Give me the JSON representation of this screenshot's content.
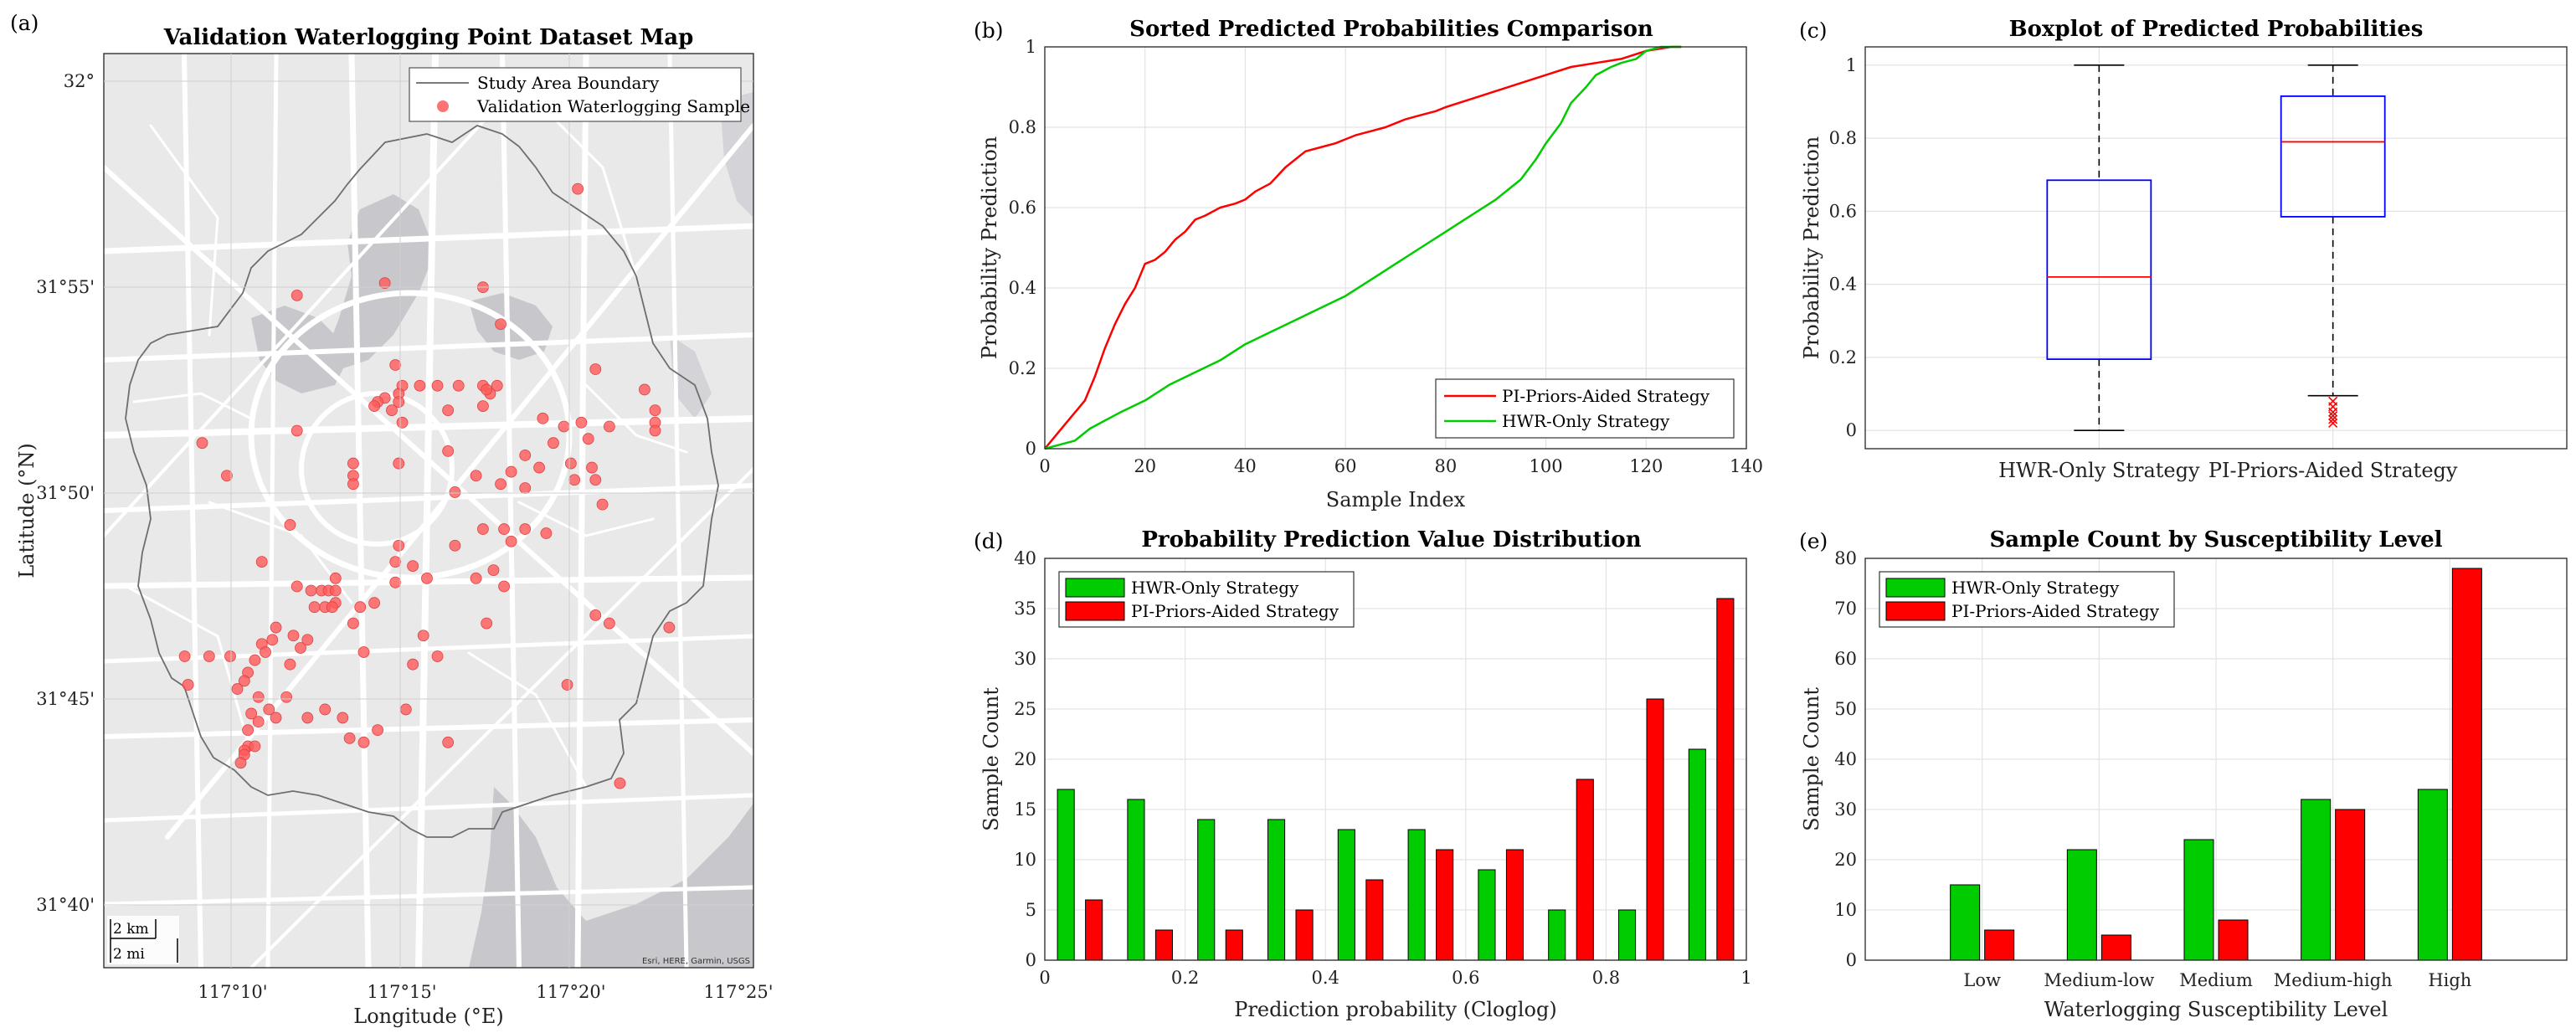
{
  "colors": {
    "red": "#ff0000",
    "green": "#00cc00",
    "box_blue": "#0000ff",
    "map_bg": "#e9e9e9",
    "water": "#c8c8cc",
    "road": "#ffffff",
    "sample_point": "#ff5a5a"
  },
  "panels": {
    "a": {
      "label": "(a)",
      "title": "Validation Waterlogging Point Dataset Map",
      "xlabel": "Longitude (°E)",
      "ylabel": "Latitude (°N)",
      "xticks": [
        "117°10'",
        "117°15'",
        "117°20'",
        "117°25'"
      ],
      "yticks": [
        "32°",
        "31°55'",
        "31°50'",
        "31°45'",
        "31°40'"
      ],
      "legend": [
        "Study Area Boundary",
        "Validation Waterlogging Sample"
      ],
      "scale_km": "2 km",
      "scale_mi": "2 mi",
      "attribution": "Esri, HERE, Garmin, USGS"
    },
    "b": {
      "label": "(b)"
    },
    "c": {
      "label": "(c)"
    },
    "d": {
      "label": "(d)"
    },
    "e": {
      "label": "(e)"
    }
  },
  "chart_data": [
    {
      "type": "scatter",
      "id": "a",
      "title": "Validation Waterlogging Point Dataset Map",
      "xlabel": "Longitude (°E)",
      "ylabel": "Latitude (°N)",
      "xlim": [
        117.1083,
        117.4167
      ],
      "ylim": [
        31.6417,
        32.0133
      ],
      "series": [
        {
          "name": "Validation Waterlogging Sample",
          "points": [
            [
              117.3333,
              31.9583
            ],
            [
              117.2417,
              31.92
            ],
            [
              117.2883,
              31.9183
            ],
            [
              117.2,
              31.915
            ],
            [
              117.2967,
              31.9033
            ],
            [
              117.3417,
              31.885
            ],
            [
              117.2467,
              31.8867
            ],
            [
              117.25,
              31.8783
            ],
            [
              117.2483,
              31.875
            ],
            [
              117.2483,
              31.8717
            ],
            [
              117.2417,
              31.8733
            ],
            [
              117.2383,
              31.8717
            ],
            [
              117.2367,
              31.87
            ],
            [
              117.245,
              31.8683
            ],
            [
              117.25,
              31.8633
            ],
            [
              117.2583,
              31.8783
            ],
            [
              117.2667,
              31.8783
            ],
            [
              117.2767,
              31.8783
            ],
            [
              117.2883,
              31.8783
            ],
            [
              117.2917,
              31.875
            ],
            [
              117.29,
              31.8767
            ],
            [
              117.295,
              31.8783
            ],
            [
              117.2883,
              31.87
            ],
            [
              117.2717,
              31.8683
            ],
            [
              117.3167,
              31.865
            ],
            [
              117.3267,
              31.8617
            ],
            [
              117.335,
              31.8633
            ],
            [
              117.3483,
              31.8617
            ],
            [
              117.365,
              31.8767
            ],
            [
              117.37,
              31.8683
            ],
            [
              117.37,
              31.8633
            ],
            [
              117.37,
              31.86
            ],
            [
              117.155,
              31.855
            ],
            [
              117.2,
              31.86
            ],
            [
              117.2483,
              31.8467
            ],
            [
              117.2717,
              31.8517
            ],
            [
              117.3083,
              31.85
            ],
            [
              117.3217,
              31.855
            ],
            [
              117.3383,
              31.8567
            ],
            [
              117.315,
              31.845
            ],
            [
              117.33,
              31.8467
            ],
            [
              117.34,
              31.845
            ],
            [
              117.3417,
              31.84
            ],
            [
              117.3317,
              31.84
            ],
            [
              117.3017,
              31.8433
            ],
            [
              117.2967,
              31.8383
            ],
            [
              117.285,
              31.8417
            ],
            [
              117.275,
              31.835
            ],
            [
              117.3083,
              31.8367
            ],
            [
              117.345,
              31.83
            ],
            [
              117.2267,
              31.8467
            ],
            [
              117.2267,
              31.8417
            ],
            [
              117.2267,
              31.8383
            ],
            [
              117.1667,
              31.8417
            ],
            [
              117.2183,
              31.8
            ],
            [
              117.2483,
              31.8133
            ],
            [
              117.255,
              31.805
            ],
            [
              117.2617,
              31.8
            ],
            [
              117.275,
              31.8133
            ],
            [
              117.2883,
              31.82
            ],
            [
              117.2983,
              31.82
            ],
            [
              117.3083,
              31.82
            ],
            [
              117.3183,
              31.8183
            ],
            [
              117.3017,
              31.815
            ],
            [
              117.2933,
              31.8033
            ],
            [
              117.285,
              31.8
            ],
            [
              117.2983,
              31.7967
            ],
            [
              117.2467,
              31.8067
            ],
            [
              117.2467,
              31.7983
            ],
            [
              117.1967,
              31.8217
            ],
            [
              117.1833,
              31.8067
            ],
            [
              117.2,
              31.7967
            ],
            [
              117.2067,
              31.795
            ],
            [
              117.2117,
              31.795
            ],
            [
              117.215,
              31.795
            ],
            [
              117.2183,
              31.795
            ],
            [
              117.2183,
              31.79
            ],
            [
              117.2083,
              31.7883
            ],
            [
              117.2133,
              31.7883
            ],
            [
              117.2167,
              31.7883
            ],
            [
              117.23,
              31.7883
            ],
            [
              117.2367,
              31.79
            ],
            [
              117.2267,
              31.7817
            ],
            [
              117.3417,
              31.785
            ],
            [
              117.3483,
              31.7817
            ],
            [
              117.3767,
              31.78
            ],
            [
              117.29,
              31.7817
            ],
            [
              117.26,
              31.7767
            ],
            [
              117.2667,
              31.7683
            ],
            [
              117.255,
              31.765
            ],
            [
              117.2317,
              31.77
            ],
            [
              117.19,
              31.78
            ],
            [
              117.1983,
              31.7767
            ],
            [
              117.205,
              31.775
            ],
            [
              117.1883,
              31.775
            ],
            [
              117.1833,
              31.7733
            ],
            [
              117.185,
              31.77
            ],
            [
              117.1967,
              31.765
            ],
            [
              117.2017,
              31.7717
            ],
            [
              117.18,
              31.7667
            ],
            [
              117.1683,
              31.7683
            ],
            [
              117.1583,
              31.7683
            ],
            [
              117.1467,
              31.7683
            ],
            [
              117.1767,
              31.7617
            ],
            [
              117.175,
              31.7583
            ],
            [
              117.1717,
              31.755
            ],
            [
              117.1817,
              31.7517
            ],
            [
              117.195,
              31.7517
            ],
            [
              117.1867,
              31.7467
            ],
            [
              117.2133,
              31.7467
            ],
            [
              117.2217,
              31.7433
            ],
            [
              117.19,
              31.7433
            ],
            [
              117.1817,
              31.7417
            ],
            [
              117.1783,
              31.745
            ],
            [
              117.205,
              31.7433
            ],
            [
              117.225,
              31.735
            ],
            [
              117.2317,
              31.7333
            ],
            [
              117.2383,
              31.7383
            ],
            [
              117.2517,
              31.7467
            ],
            [
              117.2717,
              31.7333
            ],
            [
              117.1767,
              31.7383
            ],
            [
              117.1767,
              31.7317
            ],
            [
              117.175,
              31.73
            ],
            [
              117.3283,
              31.7567
            ],
            [
              117.3533,
              31.7167
            ],
            [
              117.18,
              31.7317
            ],
            [
              117.1483,
              31.7567
            ],
            [
              117.175,
              31.7283
            ],
            [
              117.1733,
              31.725
            ]
          ]
        }
      ]
    },
    {
      "type": "line",
      "id": "b",
      "title": "Sorted Predicted Probabilities Comparison",
      "xlabel": "Sample Index",
      "ylabel": "Probability Prediction",
      "xlim": [
        0,
        140
      ],
      "ylim": [
        0,
        1
      ],
      "xticks": [
        0,
        20,
        40,
        60,
        80,
        100,
        120,
        140
      ],
      "yticks": [
        0,
        0.2,
        0.4,
        0.6,
        0.8,
        1
      ],
      "legend_location": "bottom-right",
      "series": [
        {
          "name": "PI-Priors-Aided Strategy",
          "x": [
            0,
            2,
            4,
            6,
            8,
            10,
            12,
            14,
            16,
            18,
            20,
            22,
            24,
            26,
            28,
            30,
            32,
            35,
            38,
            40,
            42,
            45,
            48,
            50,
            52,
            55,
            58,
            60,
            62,
            65,
            68,
            70,
            72,
            75,
            78,
            80,
            85,
            90,
            95,
            100,
            105,
            110,
            115,
            120,
            125,
            127
          ],
          "values": [
            0.0,
            0.03,
            0.06,
            0.09,
            0.12,
            0.18,
            0.25,
            0.31,
            0.36,
            0.4,
            0.46,
            0.47,
            0.49,
            0.52,
            0.54,
            0.57,
            0.58,
            0.6,
            0.61,
            0.62,
            0.64,
            0.66,
            0.7,
            0.72,
            0.74,
            0.75,
            0.76,
            0.77,
            0.78,
            0.79,
            0.8,
            0.81,
            0.82,
            0.83,
            0.84,
            0.85,
            0.87,
            0.89,
            0.91,
            0.93,
            0.95,
            0.96,
            0.97,
            0.99,
            1.0,
            1.0
          ]
        },
        {
          "name": "HWR-Only Strategy",
          "x": [
            0,
            3,
            6,
            9,
            12,
            15,
            20,
            25,
            30,
            35,
            40,
            45,
            50,
            55,
            60,
            65,
            70,
            75,
            80,
            85,
            90,
            95,
            98,
            100,
            103,
            105,
            108,
            110,
            113,
            115,
            118,
            120,
            123,
            125,
            127
          ],
          "values": [
            0.0,
            0.01,
            0.02,
            0.05,
            0.07,
            0.09,
            0.12,
            0.16,
            0.19,
            0.22,
            0.26,
            0.29,
            0.32,
            0.35,
            0.38,
            0.42,
            0.46,
            0.5,
            0.54,
            0.58,
            0.62,
            0.67,
            0.72,
            0.76,
            0.81,
            0.86,
            0.9,
            0.93,
            0.95,
            0.96,
            0.97,
            0.99,
            1.0,
            1.0,
            1.0
          ]
        }
      ]
    },
    {
      "type": "box",
      "id": "c",
      "title": "Boxplot of Predicted Probabilities",
      "ylabel": "Probability Prediction",
      "ylim": [
        -0.05,
        1.05
      ],
      "yticks": [
        0,
        0.2,
        0.4,
        0.6,
        0.8,
        1
      ],
      "categories": [
        "HWR-Only Strategy",
        "PI-Priors-Aided Strategy"
      ],
      "boxes": [
        {
          "name": "HWR-Only Strategy",
          "whisker_low": 0.0,
          "q1": 0.195,
          "median": 0.42,
          "q3": 0.685,
          "whisker_high": 1.0,
          "outliers": []
        },
        {
          "name": "PI-Priors-Aided Strategy",
          "whisker_low": 0.095,
          "q1": 0.585,
          "median": 0.79,
          "q3": 0.915,
          "whisker_high": 1.0,
          "outliers": [
            0.08,
            0.065,
            0.05,
            0.04,
            0.03,
            0.02
          ]
        }
      ]
    },
    {
      "type": "bar",
      "id": "d",
      "title": "Probability Prediction Value Distribution",
      "xlabel": "Prediction probability (Cloglog)",
      "ylabel": "Sample Count",
      "xlim": [
        0,
        1
      ],
      "ylim": [
        0,
        40
      ],
      "xticks": [
        0,
        0.2,
        0.4,
        0.6,
        0.8,
        1
      ],
      "yticks": [
        0,
        5,
        10,
        15,
        20,
        25,
        30,
        35,
        40
      ],
      "bin_centers": [
        0.05,
        0.15,
        0.25,
        0.35,
        0.45,
        0.55,
        0.65,
        0.75,
        0.85,
        0.95
      ],
      "legend_location": "top-left",
      "series": [
        {
          "name": "HWR-Only Strategy",
          "values": [
            17,
            16,
            14,
            14,
            13,
            13,
            9,
            5,
            5,
            21
          ]
        },
        {
          "name": "PI-Priors-Aided Strategy",
          "values": [
            6,
            3,
            3,
            5,
            8,
            11,
            11,
            18,
            26,
            36
          ]
        }
      ]
    },
    {
      "type": "bar",
      "id": "e",
      "title": "Sample Count by Susceptibility Level",
      "xlabel": "Waterlogging Susceptibility Level",
      "ylabel": "Sample Count",
      "ylim": [
        0,
        80
      ],
      "yticks": [
        0,
        10,
        20,
        30,
        40,
        50,
        60,
        70,
        80
      ],
      "categories": [
        "Low",
        "Medium-low",
        "Medium",
        "Medium-high",
        "High"
      ],
      "legend_location": "top-left",
      "series": [
        {
          "name": "HWR-Only Strategy",
          "values": [
            15,
            22,
            24,
            32,
            34
          ]
        },
        {
          "name": "PI-Priors-Aided Strategy",
          "values": [
            6,
            5,
            8,
            30,
            78
          ]
        }
      ]
    }
  ]
}
